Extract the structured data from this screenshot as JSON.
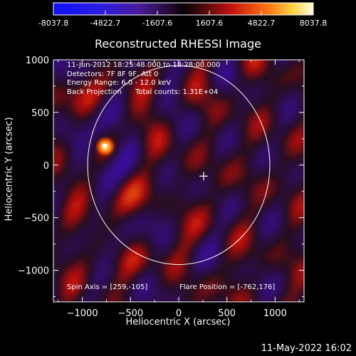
{
  "chart_data": {
    "type": "heatmap",
    "title": "Reconstructed RHESSI Image",
    "xlabel": "Heliocentric X (arcsec)",
    "ylabel": "Heliocentric Y (arcsec)",
    "xlim": [
      -1300,
      1300
    ],
    "ylim": [
      -1300,
      1000
    ],
    "xticks": [
      -1000,
      -500,
      0,
      500,
      1000
    ],
    "yticks": [
      -1000,
      -500,
      0,
      500,
      1000
    ],
    "colorbar": {
      "range": [
        -8037.8,
        8037.8
      ],
      "ticks": [
        "-8037.8",
        "-4822.7",
        "-1607.6",
        "1607.6",
        "4822.7",
        "8037.8"
      ]
    },
    "solar_limb": {
      "center": [
        0,
        0
      ],
      "radius": 945
    },
    "flare_position": [
      -762,
      176
    ],
    "spin_axis": [
      259,
      -105
    ],
    "annotations": {
      "time_range": "11-Jun-2012 18:25:48.000 to 18:28:00.000",
      "detectors": "Detectors: 7F 8F 9F, Att 0",
      "energy": "Energy Range: 6.0 - 12.0 keV",
      "method": "Back Projection",
      "counts": "Total counts: 1.31E+04",
      "spin_label": "Spin Axis = [259,-105]",
      "flare_label": "Flare Position = [-762,176]"
    }
  },
  "timestamp": "11-May-2022 16:02",
  "colors": {
    "limb": "#ffffff",
    "background": "#000000"
  }
}
